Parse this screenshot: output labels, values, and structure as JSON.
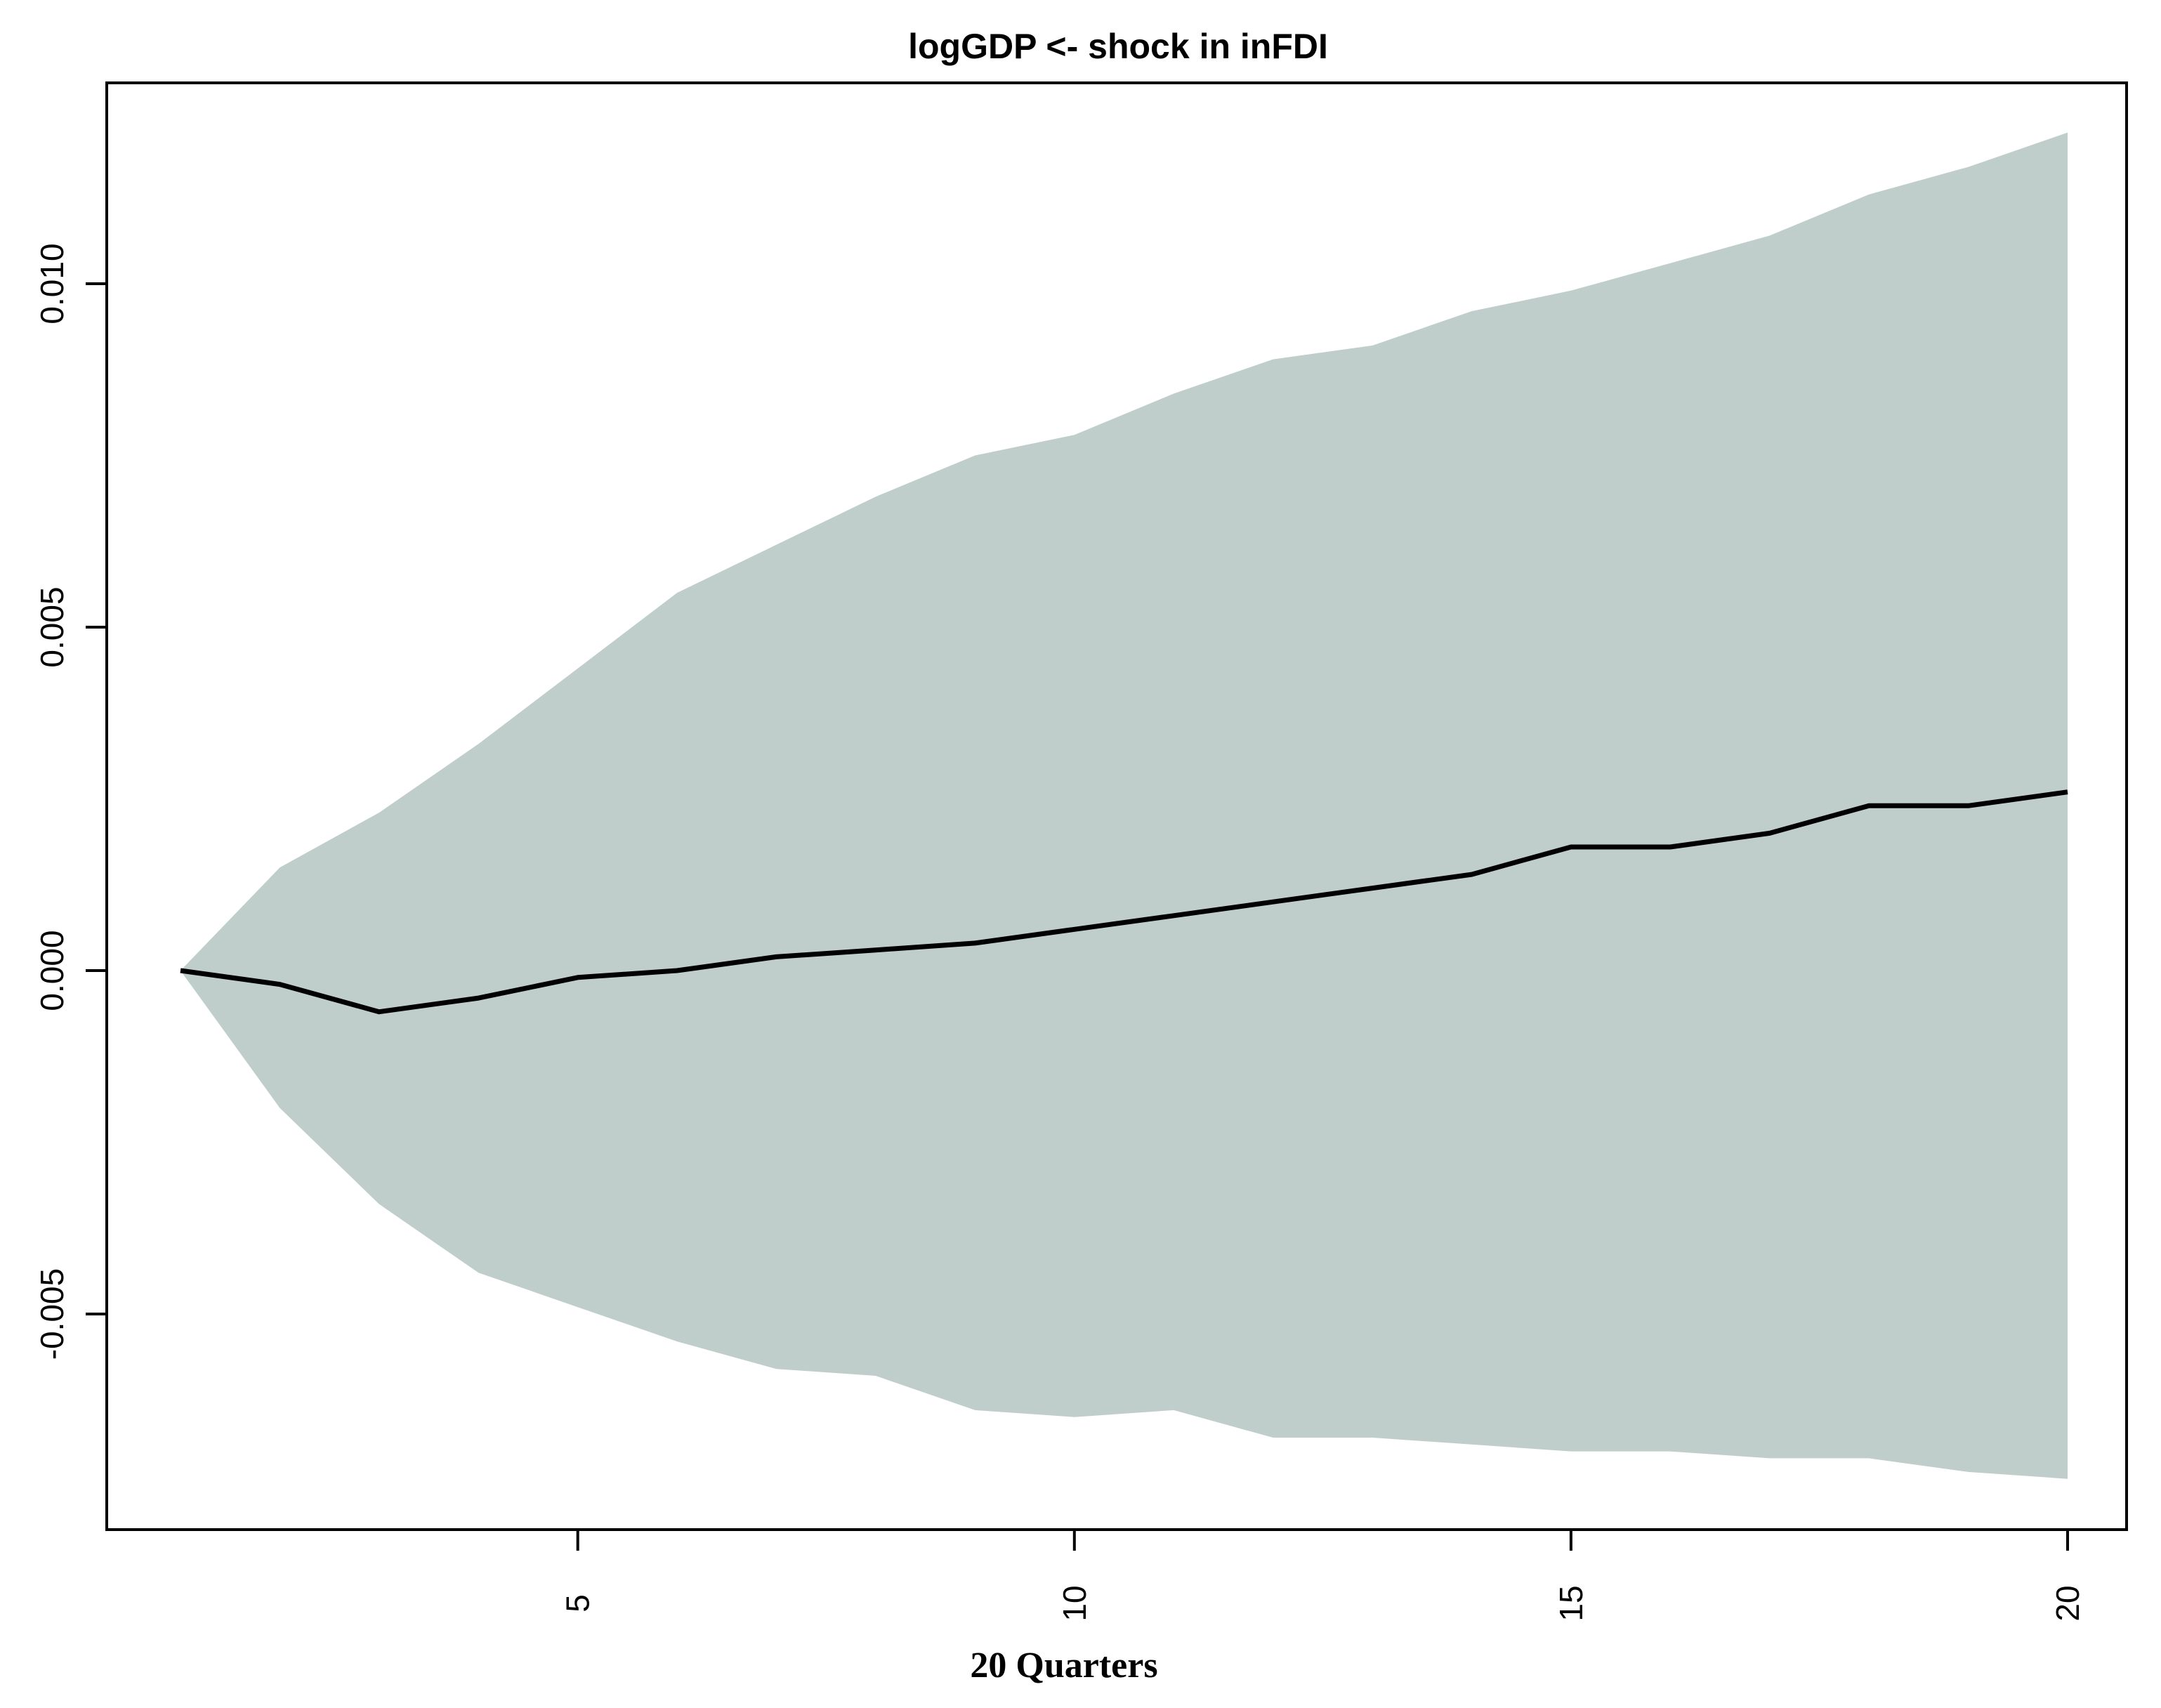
{
  "chart_data": {
    "type": "area",
    "title": "logGDP <- shock in inFDI",
    "xlabel": "20 Quarters",
    "ylabel": "",
    "xlim": [
      1,
      20
    ],
    "ylim": [
      -0.0081,
      0.0131
    ],
    "x_ticks": [
      5,
      10,
      15,
      20
    ],
    "x_tick_labels": [
      "5",
      "10",
      "15",
      "20"
    ],
    "y_ticks": [
      -0.005,
      0.0,
      0.005,
      0.01
    ],
    "y_tick_labels": [
      "-0.005",
      "0.000",
      "0.005",
      "0.010"
    ],
    "grid": false,
    "legend": "none",
    "x": [
      1,
      2,
      3,
      4,
      5,
      6,
      7,
      8,
      9,
      10,
      11,
      12,
      13,
      14,
      15,
      16,
      17,
      18,
      19,
      20
    ],
    "series": [
      {
        "role": "upper_band",
        "values": [
          0.0,
          0.0015,
          0.0023,
          0.0033,
          0.0044,
          0.0055,
          0.0062,
          0.0069,
          0.0075,
          0.0078,
          0.0084,
          0.0089,
          0.0091,
          0.0096,
          0.0099,
          0.0103,
          0.0107,
          0.0113,
          0.0117,
          0.0122
        ]
      },
      {
        "role": "response",
        "values": [
          0.0,
          -0.0002,
          -0.0006,
          -0.0004,
          -0.0001,
          0.0,
          0.0002,
          0.0003,
          0.0004,
          0.0006,
          0.0008,
          0.001,
          0.0012,
          0.0014,
          0.0018,
          0.0018,
          0.002,
          0.0024,
          0.0024,
          0.0026
        ]
      },
      {
        "role": "lower_band",
        "values": [
          0.0,
          -0.002,
          -0.0034,
          -0.0044,
          -0.0049,
          -0.0054,
          -0.0058,
          -0.0059,
          -0.0064,
          -0.0065,
          -0.0064,
          -0.0068,
          -0.0068,
          -0.0069,
          -0.007,
          -0.007,
          -0.0071,
          -0.0071,
          -0.0073,
          -0.0074
        ]
      }
    ],
    "colors": {
      "band": "#bfcdcb",
      "line": "#000000",
      "axis": "#000000"
    }
  }
}
